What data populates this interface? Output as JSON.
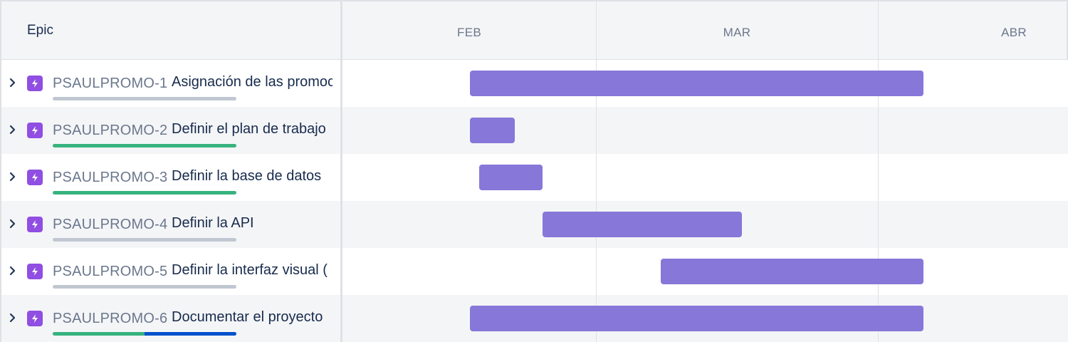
{
  "list": {
    "header_label": "Epic",
    "rows": [
      {
        "key": "PSAULPROMO-1",
        "summary": "Asignación de las promociones",
        "progress": {
          "done": 0,
          "in_progress": 0
        }
      },
      {
        "key": "PSAULPROMO-2",
        "summary": "Definir el plan de trabajo",
        "progress": {
          "done": 1,
          "in_progress": 0
        }
      },
      {
        "key": "PSAULPROMO-3",
        "summary": "Definir la base de datos",
        "progress": {
          "done": 1,
          "in_progress": 0
        }
      },
      {
        "key": "PSAULPROMO-4",
        "summary": "Definir la API",
        "progress": {
          "done": 0,
          "in_progress": 0
        }
      },
      {
        "key": "PSAULPROMO-5",
        "summary": "Definir la interfaz visual (",
        "progress": {
          "done": 0,
          "in_progress": 0
        }
      },
      {
        "key": "PSAULPROMO-6",
        "summary": "Documentar el proyecto",
        "progress": {
          "done": 0.5,
          "in_progress": 0.5
        }
      }
    ]
  },
  "timeline": {
    "months": [
      "FEB",
      "MAR",
      "ABR"
    ]
  },
  "colors": {
    "epic_icon": "#904ee2",
    "bar": "#8777d9",
    "progress_done": "#36b37e",
    "progress_in_progress": "#0052cc",
    "progress_todo": "#c1c7d0"
  }
}
